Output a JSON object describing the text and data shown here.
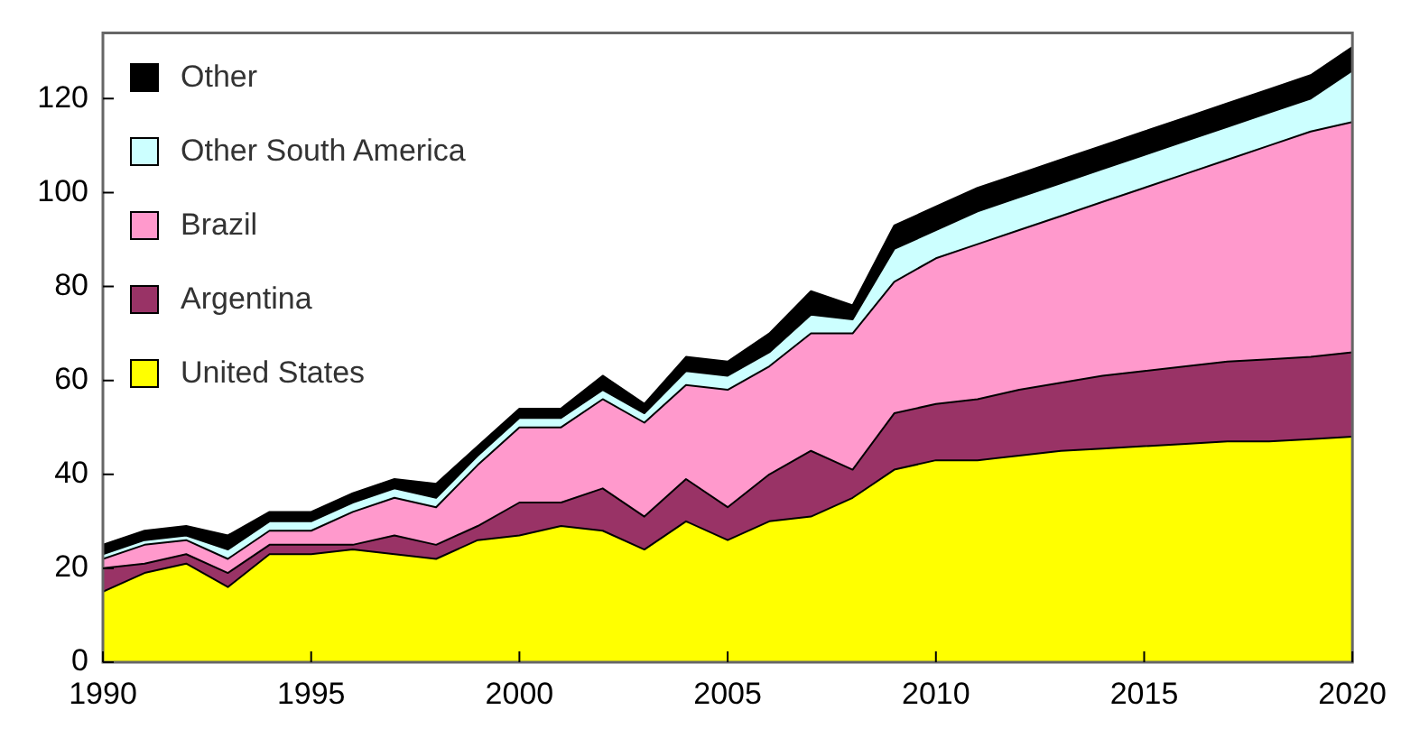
{
  "chart_data": {
    "type": "area",
    "stacked": true,
    "x": [
      1990,
      1991,
      1992,
      1993,
      1994,
      1995,
      1996,
      1997,
      1998,
      1999,
      2000,
      2001,
      2002,
      2003,
      2004,
      2005,
      2006,
      2007,
      2008,
      2009,
      2010,
      2011,
      2012,
      2013,
      2014,
      2015,
      2016,
      2017,
      2018,
      2019,
      2020
    ],
    "series": [
      {
        "name": "United States",
        "color": "#ffff00",
        "values": [
          15,
          19,
          21,
          16,
          23,
          23,
          24,
          23,
          22,
          26,
          27,
          29,
          28,
          24,
          30,
          26,
          30,
          31,
          35,
          41,
          43,
          43,
          44,
          45,
          45.5,
          46,
          46.5,
          47,
          47,
          47.5,
          48
        ]
      },
      {
        "name": "Argentina",
        "color": "#993366",
        "values": [
          5,
          2,
          2,
          3,
          2,
          2,
          1,
          4,
          3,
          3,
          7,
          5,
          9,
          7,
          9,
          7,
          10,
          14,
          6,
          12,
          12,
          13,
          14,
          14.5,
          15.5,
          16,
          16.5,
          17,
          17.5,
          17.5,
          18
        ]
      },
      {
        "name": "Brazil",
        "color": "#ff99cc",
        "values": [
          2,
          4,
          3,
          3,
          3,
          3,
          7,
          8,
          8,
          13,
          16,
          16,
          19,
          20,
          20,
          25,
          23,
          25,
          29,
          28,
          31,
          33,
          34,
          35.5,
          37,
          39,
          41,
          43,
          45.5,
          48,
          49
        ]
      },
      {
        "name": "Other South America",
        "color": "#ccffff",
        "values": [
          1,
          1,
          1,
          2,
          2,
          2,
          2,
          2,
          2,
          2,
          2,
          2,
          2,
          2,
          3,
          3,
          3,
          4,
          3,
          7,
          6,
          7,
          7,
          7,
          7,
          7,
          7,
          7,
          7,
          7,
          11
        ]
      },
      {
        "name": "Other",
        "color": "#000000",
        "values": [
          2,
          2,
          2,
          3,
          2,
          2,
          2,
          2,
          3,
          2,
          2,
          2,
          3,
          2,
          3,
          3,
          4,
          5,
          3,
          5,
          5,
          5,
          5,
          5,
          5,
          5,
          5,
          5,
          5,
          5,
          5
        ]
      }
    ],
    "xlim": [
      1990,
      2020
    ],
    "xticks": [
      1990,
      1995,
      2000,
      2005,
      2010,
      2015,
      2020
    ],
    "ylim": [
      0,
      134
    ],
    "yticks": [
      0,
      20,
      40,
      60,
      80,
      100,
      120
    ],
    "grid": false,
    "legend": "top left"
  }
}
